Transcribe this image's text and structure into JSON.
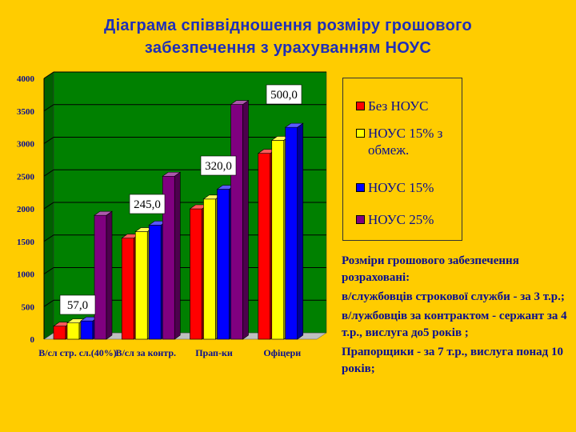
{
  "title_line1": "Діаграма співвідношення розміру грошового",
  "title_line2": "забезпечення з урахуванням НОУС",
  "legend": [
    {
      "label": "Без НОУС",
      "color": "#FF0000"
    },
    {
      "label": "НОУС 15% з обмеж.",
      "color": "#FFFF00"
    },
    {
      "label": "НОУС 15%",
      "color": "#0000FF"
    },
    {
      "label": "НОУС 25%",
      "color": "#800080"
    }
  ],
  "notes": {
    "p1": "Розміри грошового забезпечення розраховані:",
    "p2": "в/службовців строкової служби - за 3 т.р.;",
    "p3": "в/лужбовців за контрактом - сержант за 4 т.р., вислуга до5 років ;",
    "p4": "Прапорщики - за 7 т.р., вислуга понад 10 років;"
  },
  "chart_data": {
    "type": "bar",
    "categories": [
      "В/сл стр. сл.(40%)",
      "В/сл за контр.",
      "Прап-ки",
      "Офіцери"
    ],
    "series": [
      {
        "name": "Без НОУС",
        "values": [
          200,
          1550,
          2000,
          2850
        ]
      },
      {
        "name": "НОУС 15% з обмеж.",
        "values": [
          250,
          1650,
          2150,
          3050
        ]
      },
      {
        "name": "НОУС 15%",
        "values": [
          280,
          1750,
          2300,
          3250
        ]
      },
      {
        "name": "НОУС 25%",
        "values": [
          1900,
          2500,
          3600,
          0
        ]
      }
    ],
    "data_labels": [
      "57,0",
      "245,0",
      "320,0",
      "500,0"
    ],
    "ylim": [
      0,
      4000
    ],
    "yticks": [
      0,
      500,
      1000,
      1500,
      2000,
      2500,
      3000,
      3500,
      4000
    ],
    "grid": true,
    "legend_position": "right",
    "colors": {
      "wall": "#008000",
      "floor": "#C0C0C0"
    }
  }
}
